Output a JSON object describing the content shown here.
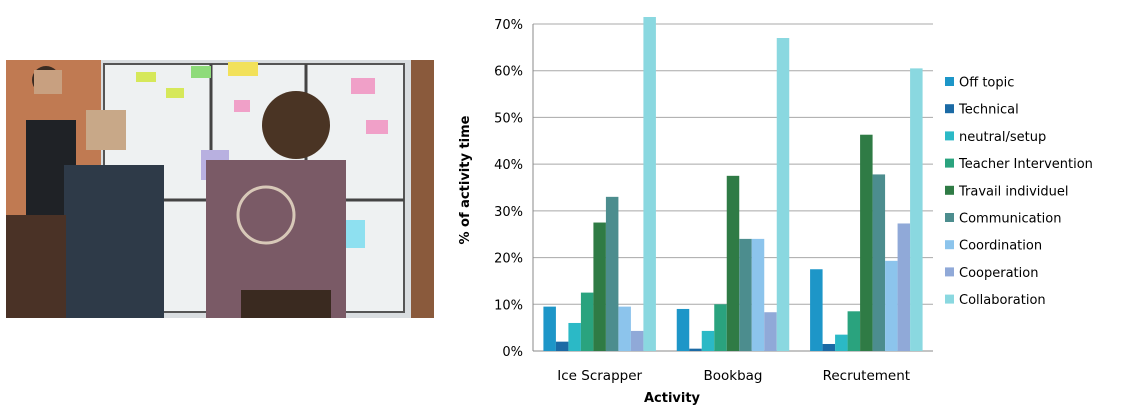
{
  "photo": {
    "description_icon": "classroom-photo"
  },
  "chart_data": {
    "type": "bar",
    "title": "",
    "xlabel": "Activity",
    "ylabel": "% of activity time",
    "ylim": [
      0,
      70
    ],
    "yticks": [
      "0%",
      "10%",
      "20%",
      "30%",
      "40%",
      "50%",
      "60%",
      "70%"
    ],
    "grid": true,
    "legend_position": "right",
    "categories": [
      "Ice Scrapper",
      "Bookbag",
      "Recrutement"
    ],
    "series": [
      {
        "name": "Off topic",
        "color": "#1d96c8",
        "values": [
          9.5,
          9,
          17.5
        ]
      },
      {
        "name": "Technical",
        "color": "#1b6aa5",
        "values": [
          2,
          0.5,
          1.5
        ]
      },
      {
        "name": "neutral/setup",
        "color": "#2bb9c6",
        "values": [
          6,
          4.3,
          3.5
        ]
      },
      {
        "name": "Teacher Intervention",
        "color": "#2aa37e",
        "values": [
          12.5,
          10,
          8.5
        ]
      },
      {
        "name": "Travail individuel",
        "color": "#2f7b45",
        "values": [
          27.5,
          37.5,
          46.3
        ]
      },
      {
        "name": "Communication",
        "color": "#4c8d8e",
        "values": [
          33,
          24,
          37.8
        ]
      },
      {
        "name": "Coordination",
        "color": "#8cc4ec",
        "values": [
          9.5,
          24,
          19.3
        ]
      },
      {
        "name": "Cooperation",
        "color": "#90a9d8",
        "values": [
          4.3,
          8.3,
          27.3
        ]
      },
      {
        "name": "Collaboration",
        "color": "#8ad8e0",
        "values": [
          71.5,
          67,
          60.5
        ]
      }
    ]
  }
}
